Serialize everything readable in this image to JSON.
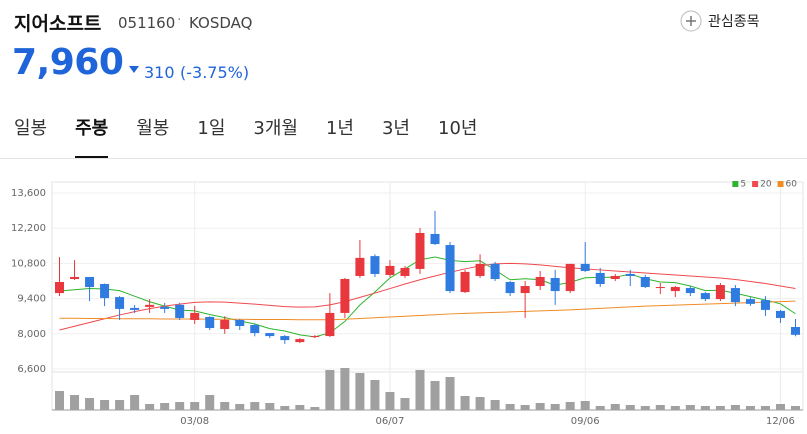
{
  "header": {
    "name": "지어소프트",
    "code": "051160",
    "market": "KOSDAQ",
    "watch": "관심종목",
    "price": "7,960",
    "change": "310",
    "change_pct": "(-3.75%)"
  },
  "tabs": [
    "일봉",
    "주봉",
    "월봉",
    "1일",
    "3개월",
    "1년",
    "3년",
    "10년"
  ],
  "active_tab": 1,
  "chart_data": {
    "type": "candlestick",
    "categories": [
      null,
      null,
      null,
      null,
      null,
      null,
      null,
      null,
      null,
      "03/08",
      null,
      null,
      null,
      null,
      null,
      null,
      null,
      null,
      null,
      null,
      null,
      null,
      "06/07",
      null,
      null,
      null,
      null,
      null,
      null,
      null,
      null,
      null,
      null,
      null,
      null,
      "09/06",
      null,
      null,
      null,
      null,
      null,
      null,
      null,
      null,
      null,
      null,
      null,
      null,
      "12/06",
      null
    ],
    "open": [
      9620,
      10180,
      10260,
      9980,
      9460,
      9030,
      9070,
      9070,
      9150,
      8550,
      8670,
      8190,
      8550,
      8350,
      8030,
      7910,
      7670,
      7870,
      7910,
      8830,
      10300,
      11090,
      10340,
      10300,
      10580,
      11970,
      11530,
      9660,
      10300,
      10780,
      10060,
      9620,
      9900,
      10220,
      9700,
      10780,
      10420,
      10180,
      10380,
      10260,
      9820,
      9700,
      9820,
      9620,
      9380,
      9820,
      9380,
      9340,
      8910,
      8270
    ],
    "high": [
      11050,
      10930,
      10260,
      10000,
      9500,
      9150,
      9380,
      9230,
      9230,
      9110,
      8700,
      8700,
      8590,
      8400,
      8030,
      7950,
      7830,
      7950,
      9620,
      10220,
      11730,
      11160,
      10930,
      10700,
      12210,
      12890,
      11650,
      10540,
      11160,
      10860,
      10100,
      10100,
      10500,
      10540,
      10780,
      11650,
      10620,
      10380,
      10540,
      10340,
      10020,
      9900,
      9900,
      9660,
      10020,
      9940,
      9460,
      9500,
      8950,
      8590
    ],
    "low": [
      9500,
      10140,
      9300,
      9100,
      8550,
      8830,
      8830,
      8830,
      8550,
      8390,
      8150,
      8000,
      8150,
      7900,
      7830,
      7600,
      7630,
      7830,
      7870,
      8630,
      10220,
      10260,
      10260,
      10220,
      10380,
      11530,
      9620,
      9620,
      10220,
      10100,
      9500,
      8630,
      9740,
      9150,
      9620,
      10460,
      9860,
      10100,
      9900,
      9820,
      9580,
      9460,
      9500,
      9300,
      9300,
      9100,
      9110,
      8710,
      8430,
      7900
    ],
    "close": [
      10060,
      10260,
      9860,
      9420,
      8990,
      8950,
      9150,
      8990,
      8630,
      8830,
      8230,
      8550,
      8310,
      8030,
      7910,
      7750,
      7790,
      7910,
      8830,
      10180,
      11020,
      10380,
      10700,
      10620,
      12010,
      11570,
      9700,
      10460,
      10780,
      10180,
      9620,
      9900,
      10260,
      9700,
      10780,
      10500,
      9980,
      10300,
      10300,
      9860,
      9860,
      9860,
      9620,
      9380,
      9940,
      9260,
      9190,
      8950,
      8630,
      7960
    ],
    "up_color": "#e8383d",
    "down_color": "#2f7be0",
    "series": [
      {
        "name": "5",
        "color": "#2cb52c",
        "values": [
          9700,
          9750,
          9800,
          9780,
          9718,
          9496,
          9274,
          9100,
          8942,
          8910,
          8766,
          8646,
          8510,
          8390,
          8206,
          8110,
          7958,
          7878,
          8038,
          8492,
          9146,
          9664,
          10222,
          10580,
          10946,
          11056,
          10920,
          10872,
          10904,
          10538,
          10148,
          10188,
          10148,
          9932,
          10052,
          10228,
          10244,
          10252,
          10372,
          10188,
          10060,
          10036,
          9900,
          9716,
          9732,
          9612,
          9478,
          9344,
          9194,
          8798
        ]
      },
      {
        "name": "20",
        "color": "#f04a4e",
        "values": [
          8150,
          8300,
          8450,
          8600,
          8750,
          8880,
          9000,
          9100,
          9180,
          9250,
          9270,
          9260,
          9220,
          9180,
          9130,
          9080,
          9060,
          9070,
          9150,
          9280,
          9450,
          9620,
          9800,
          9980,
          10150,
          10300,
          10450,
          10580,
          10700,
          10780,
          10800,
          10780,
          10740,
          10680,
          10620,
          10580,
          10540,
          10500,
          10460,
          10420,
          10380,
          10340,
          10300,
          10260,
          10220,
          10160,
          10080,
          10000,
          9900,
          9800
        ]
      },
      {
        "name": "60",
        "color": "#f08c28",
        "values": [
          8620,
          8620,
          8610,
          8610,
          8600,
          8600,
          8600,
          8590,
          8590,
          8590,
          8580,
          8580,
          8580,
          8570,
          8570,
          8570,
          8560,
          8560,
          8560,
          8580,
          8610,
          8640,
          8670,
          8700,
          8730,
          8760,
          8790,
          8810,
          8830,
          8850,
          8870,
          8890,
          8910,
          8930,
          8950,
          8980,
          9010,
          9040,
          9070,
          9100,
          9120,
          9140,
          9160,
          9180,
          9200,
          9220,
          9240,
          9260,
          9280,
          9300
        ]
      }
    ],
    "volume": {
      "color": "#a0a0a0",
      "values": [
        19,
        15,
        12,
        10,
        10,
        15,
        6,
        7,
        8,
        8,
        15,
        8,
        6,
        8,
        7,
        4,
        5,
        3,
        40,
        42,
        37,
        30,
        18,
        12,
        40,
        29,
        33,
        14,
        13,
        10,
        6,
        5,
        7,
        6,
        8,
        9,
        4,
        6,
        5,
        4,
        5,
        4,
        5,
        4,
        4,
        5,
        4,
        4,
        6,
        4
      ]
    },
    "ylim": [
      6600,
      13600
    ],
    "yticks": [
      {
        "value": 6600,
        "label": "6,600"
      },
      {
        "value": 8000,
        "label": "8,000"
      },
      {
        "value": 9400,
        "label": "9,400"
      },
      {
        "value": 10800,
        "label": "10,800"
      },
      {
        "value": 12200,
        "label": "12,200"
      },
      {
        "value": 13600,
        "label": "13,600"
      }
    ],
    "grid": true,
    "legend": "top-right"
  }
}
